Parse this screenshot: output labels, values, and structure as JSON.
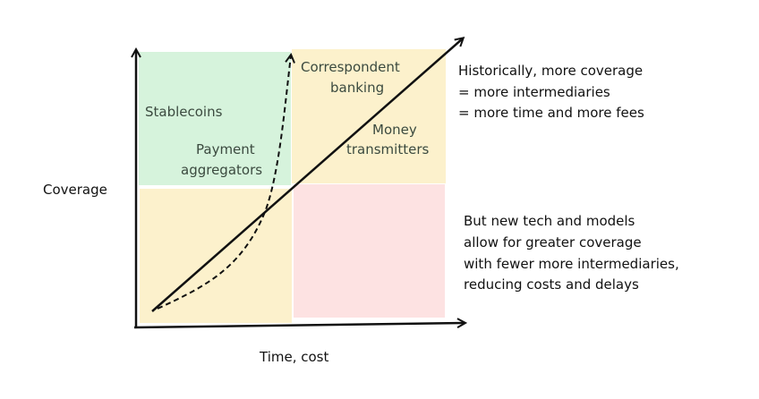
{
  "axes": {
    "y_label": "Coverage",
    "x_label": "Time, cost"
  },
  "quadrants": {
    "top_left_color": "#d6f3dc",
    "top_right_color": "#fcf1cc",
    "bottom_left_color": "#fcf1cc",
    "bottom_right_color": "#fde2e2"
  },
  "labels": {
    "stablecoins": "Stablecoins",
    "payment_aggregators": [
      "Payment",
      "aggregators"
    ],
    "correspondent_banking": [
      "Correspondent",
      "banking"
    ],
    "money_transmitters": [
      "Money",
      "transmitters"
    ]
  },
  "notes": {
    "historical": [
      "Historically, more coverage",
      "= more intermediaries",
      "= more time and more fees"
    ],
    "new_tech": [
      "But new tech and models",
      "allow for greater coverage",
      "with fewer more intermediaries,",
      "reducing costs and delays"
    ]
  },
  "lines": {
    "solid": "traditional path",
    "dashed": "new tech path"
  }
}
